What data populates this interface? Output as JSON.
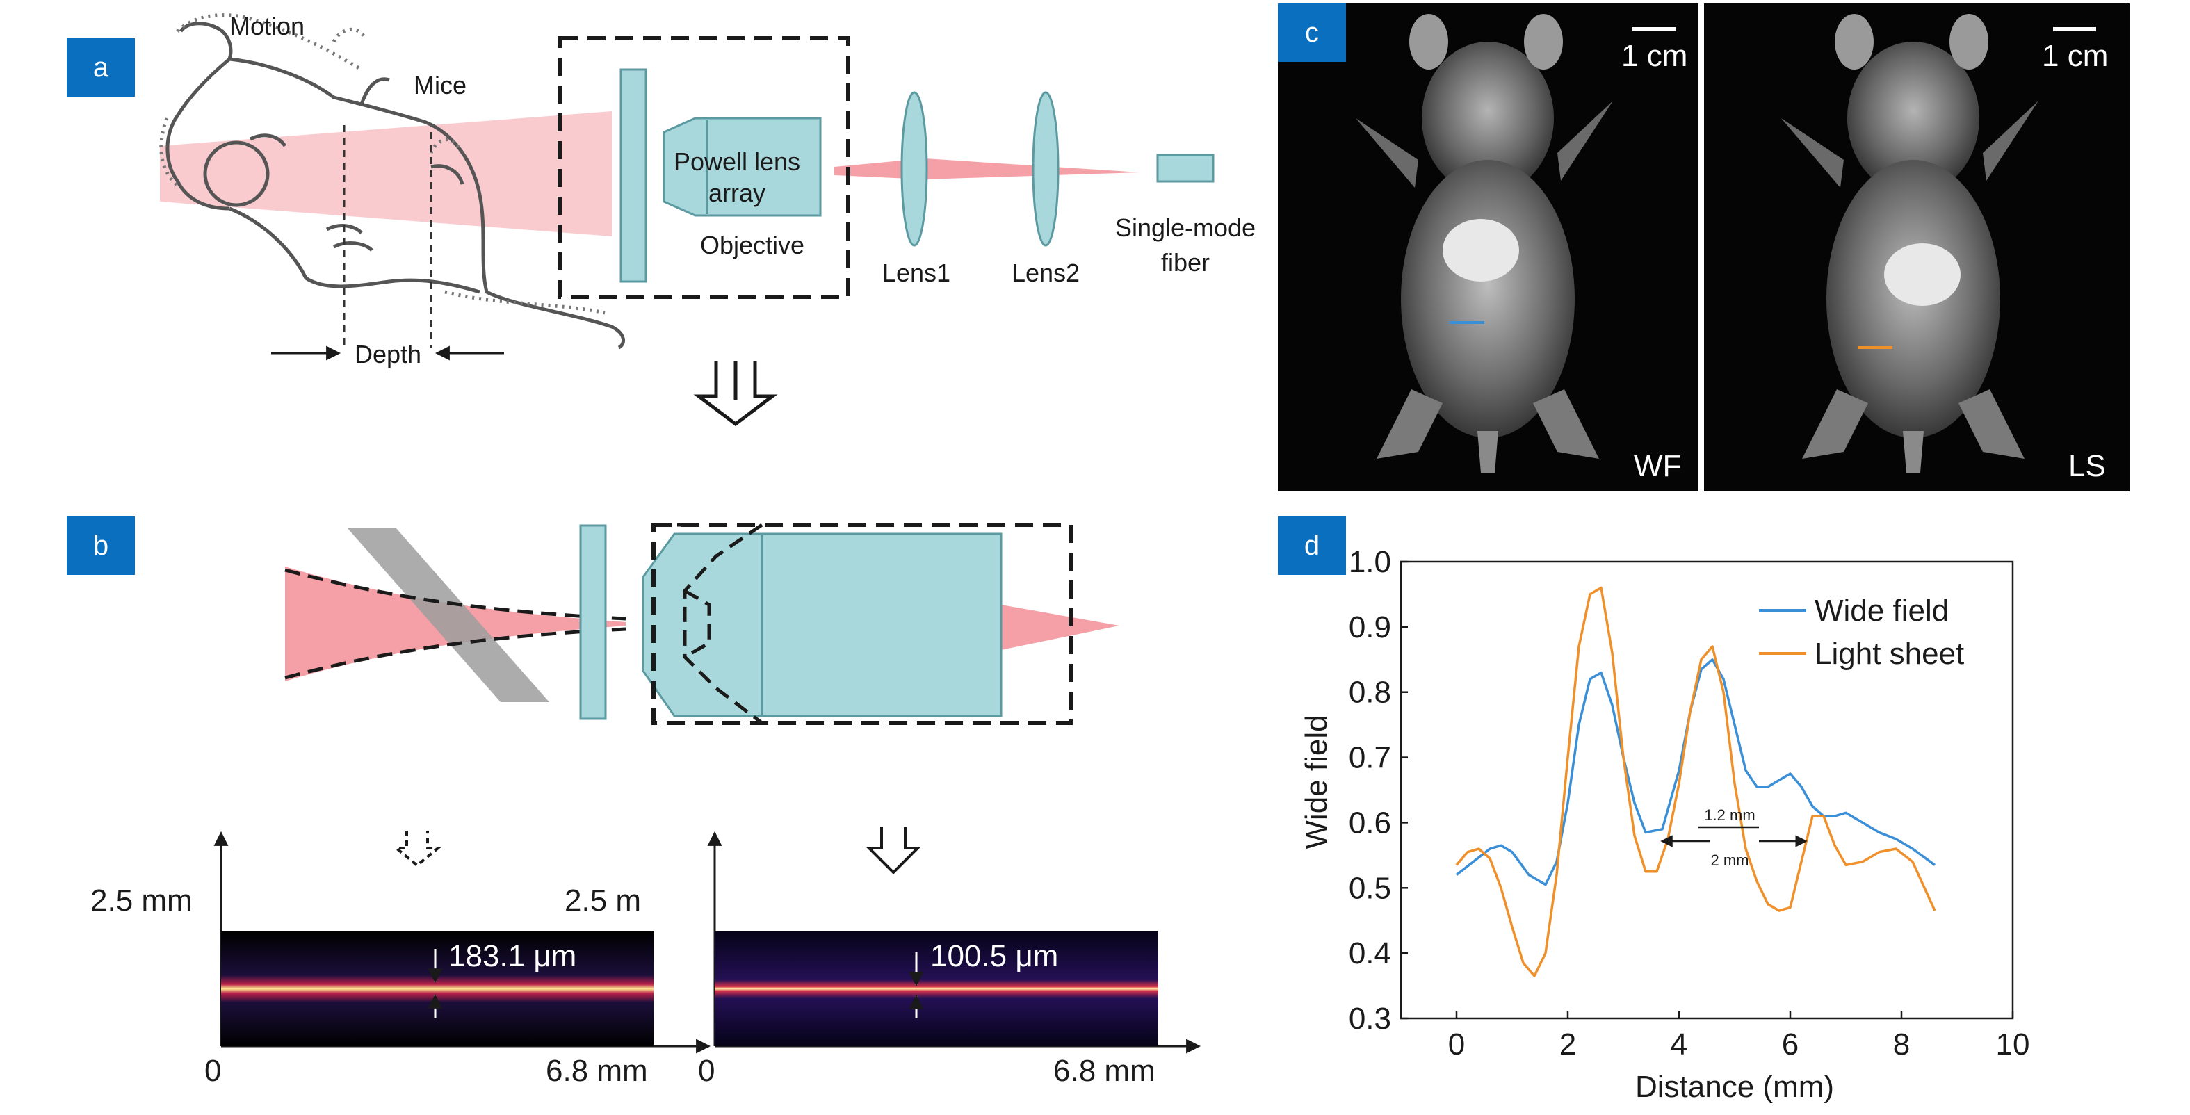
{
  "colors": {
    "badge": "#0a6fbf",
    "optics": "#a9d8dc",
    "optics_stroke": "#5a9aa0",
    "beam": "#f5a0a6",
    "glass_plate": "#9e9e9e",
    "wide_field": "#3b8fd6",
    "light_sheet": "#f0902a"
  },
  "panels": {
    "a": {
      "badge": "a",
      "motion": "Motion",
      "mice": "Mice",
      "depth": "Depth",
      "powell": [
        "Powell lens",
        "array"
      ],
      "objective": "Objective",
      "lens1": "Lens1",
      "lens2": "Lens2",
      "fiber": [
        "Single-mode",
        "fiber"
      ]
    },
    "b": {
      "badge": "b",
      "left_plot": {
        "y_label": "2.5 mm",
        "x_start": "0",
        "x_end": "6.8 mm",
        "width_label": "183.1 μm"
      },
      "right_plot": {
        "y_label": "2.5 m",
        "x_start": "0",
        "x_end": "6.8 mm",
        "width_label": "100.5 μm"
      }
    },
    "c": {
      "badge": "c",
      "left_scale": "1 cm",
      "right_scale": "1 cm",
      "left_tag": "WF",
      "right_tag": "LS"
    },
    "d": {
      "badge": "d",
      "annot_inner": "1.2 mm",
      "annot_outer": "2 mm"
    }
  },
  "chart_data": {
    "type": "line",
    "title": "",
    "xlabel": "Distance (mm)",
    "ylabel": "Wide field",
    "xlim": [
      -1,
      10
    ],
    "ylim": [
      0.3,
      1.0
    ],
    "xticks": [
      0,
      2,
      4,
      6,
      8,
      10
    ],
    "yticks": [
      0.3,
      0.4,
      0.5,
      0.6,
      0.7,
      0.8,
      0.9,
      1.0
    ],
    "grid": false,
    "legend_position": "top-right",
    "series": [
      {
        "name": "Wide field",
        "color": "#3b8fd6",
        "x": [
          0,
          0.3,
          0.6,
          0.8,
          1.0,
          1.3,
          1.6,
          1.8,
          2.0,
          2.2,
          2.4,
          2.6,
          2.8,
          3.0,
          3.2,
          3.4,
          3.7,
          4.0,
          4.2,
          4.4,
          4.6,
          4.8,
          5.0,
          5.2,
          5.4,
          5.6,
          5.8,
          6.0,
          6.2,
          6.4,
          6.6,
          6.8,
          7.0,
          7.3,
          7.6,
          7.9,
          8.2,
          8.6
        ],
        "y": [
          0.52,
          0.54,
          0.56,
          0.565,
          0.555,
          0.52,
          0.505,
          0.54,
          0.63,
          0.75,
          0.82,
          0.83,
          0.78,
          0.7,
          0.63,
          0.585,
          0.59,
          0.68,
          0.77,
          0.835,
          0.85,
          0.82,
          0.75,
          0.68,
          0.655,
          0.655,
          0.665,
          0.675,
          0.655,
          0.625,
          0.61,
          0.61,
          0.615,
          0.6,
          0.585,
          0.575,
          0.56,
          0.535
        ]
      },
      {
        "name": "Light sheet",
        "color": "#f0902a",
        "x": [
          0,
          0.2,
          0.4,
          0.6,
          0.8,
          1.0,
          1.2,
          1.4,
          1.6,
          1.8,
          2.0,
          2.2,
          2.4,
          2.6,
          2.8,
          3.0,
          3.2,
          3.4,
          3.6,
          3.8,
          4.0,
          4.2,
          4.4,
          4.6,
          4.8,
          5.0,
          5.2,
          5.4,
          5.6,
          5.8,
          6.0,
          6.2,
          6.4,
          6.6,
          6.8,
          7.0,
          7.3,
          7.6,
          7.9,
          8.2,
          8.6
        ],
        "y": [
          0.535,
          0.555,
          0.56,
          0.545,
          0.5,
          0.44,
          0.385,
          0.365,
          0.4,
          0.52,
          0.7,
          0.87,
          0.95,
          0.96,
          0.86,
          0.7,
          0.58,
          0.525,
          0.525,
          0.575,
          0.66,
          0.77,
          0.85,
          0.87,
          0.8,
          0.66,
          0.56,
          0.51,
          0.475,
          0.465,
          0.47,
          0.54,
          0.61,
          0.61,
          0.565,
          0.535,
          0.54,
          0.555,
          0.56,
          0.54,
          0.465
        ]
      }
    ]
  }
}
